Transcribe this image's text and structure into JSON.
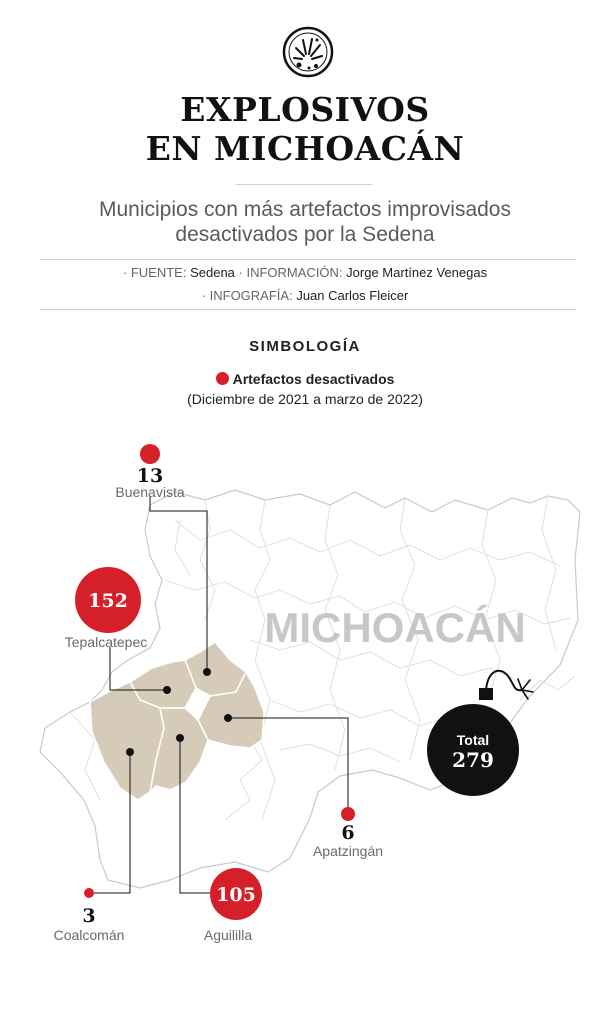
{
  "header": {
    "logo_icon": "explosion-icon",
    "title_line1": "EXPLOSIVOS",
    "title_line2": "EN MICHOACÁN",
    "subtitle_line1": "Municipios con más artefactos improvisados",
    "subtitle_line2": "desactivados por la Sedena"
  },
  "credits": {
    "fuente_label": "· FUENTE:",
    "fuente_value": "Sedena",
    "informacion_label": "· INFORMACIÓN:",
    "informacion_value": "Jorge Martínez Venegas",
    "infografia_label": "· INFOGRAFÍA:",
    "infografia_value": "Juan Carlos Fleicer"
  },
  "legend": {
    "heading": "SIMBOLOGÍA",
    "item_label": "Artefactos desactivados",
    "period": "(Diciembre de 2021 a marzo de 2022)",
    "marker_color": "#d5202a"
  },
  "map": {
    "state_label": "MICHOACÁN",
    "highlight_color": "#d6cbb8",
    "municipios": [
      {
        "name": "Buenavista",
        "value": 13
      },
      {
        "name": "Tepalcatepec",
        "value": 152
      },
      {
        "name": "Apatzingán",
        "value": 6
      },
      {
        "name": "Coalcomán",
        "value": 3
      },
      {
        "name": "Aguililla",
        "value": 105
      }
    ],
    "total": {
      "label": "Total",
      "value": 279
    }
  }
}
